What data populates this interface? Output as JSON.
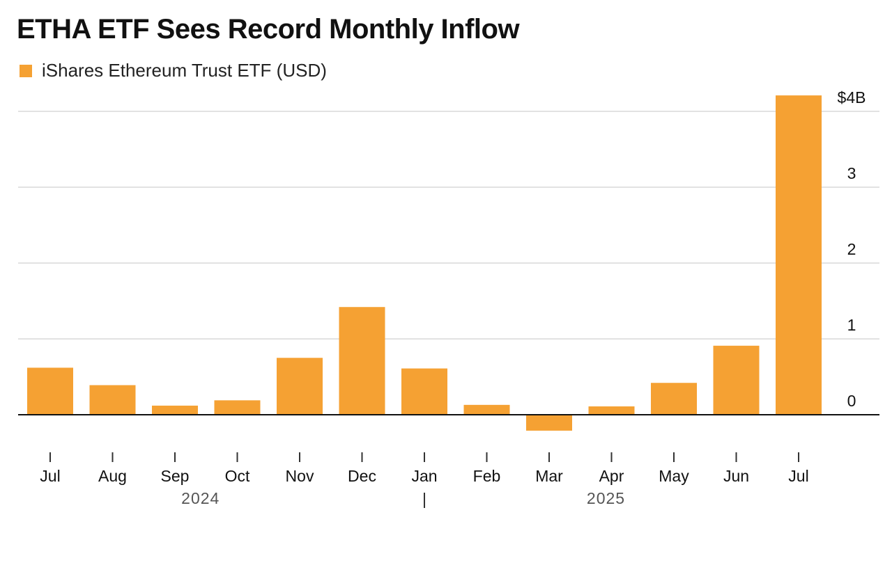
{
  "title": "ETHA ETF Sees Record Monthly Inflow",
  "legend": {
    "label": "iShares Ethereum Trust ETF (USD)",
    "color": "#F5A133"
  },
  "colors": {
    "bar": "#F5A133",
    "grid": "#D9D9D9",
    "zero_line": "#111111",
    "tick": "#333333"
  },
  "chart_data": {
    "type": "bar",
    "title": "ETHA ETF Sees Record Monthly Inflow",
    "xlabel": "",
    "ylabel": "",
    "categories": [
      "Jul",
      "Aug",
      "Sep",
      "Oct",
      "Nov",
      "Dec",
      "Jan",
      "Feb",
      "Mar",
      "Apr",
      "May",
      "Jun",
      "Jul"
    ],
    "years": [
      {
        "label": "2024",
        "from_index": 0,
        "to_index": 5
      },
      {
        "label": "2025",
        "from_index": 6,
        "to_index": 12
      }
    ],
    "series": [
      {
        "name": "iShares Ethereum Trust ETF (USD)",
        "values": [
          0.62,
          0.39,
          0.12,
          0.19,
          0.75,
          1.42,
          0.61,
          0.13,
          -0.21,
          0.11,
          0.42,
          0.91,
          4.21
        ]
      }
    ],
    "ylim": [
      -0.25,
      4.25
    ],
    "yticks": [
      0,
      1,
      2,
      3,
      4
    ],
    "ytick_labels": [
      "0",
      "1",
      "2",
      "3",
      "$4B"
    ],
    "y_axis_side": "right",
    "grid": true,
    "legend_position": "top-left"
  }
}
